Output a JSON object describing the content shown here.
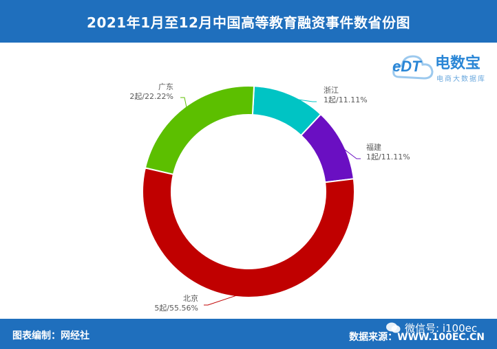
{
  "header": {
    "title": "2021年1月至12月中国高等教育融资事件数省份图"
  },
  "footer": {
    "left_text": "图表编制：网经社",
    "right_text": "数据来源：WWW.100EC.CN"
  },
  "watermark": {
    "wechat_text": "微信号: i100ec"
  },
  "logo": {
    "brand": "电数宝",
    "subtitle": "电商大数据库",
    "mark": "eDT"
  },
  "colors": {
    "header_bg": "#1f6fbd",
    "北京": "#c00000",
    "广东": "#5cbf00",
    "浙江": "#00c4c4",
    "福建": "#6a0fc2"
  },
  "chart_data": {
    "type": "pie",
    "donut": true,
    "title": "2021年1月至12月中国高等教育融资事件数省份图",
    "slices": [
      {
        "name": "浙江",
        "value": 1,
        "label": "1起/11.11%",
        "color": "#00c4c4"
      },
      {
        "name": "福建",
        "value": 1,
        "label": "1起/11.11%",
        "color": "#6a0fc2"
      },
      {
        "name": "北京",
        "value": 5,
        "label": "5起/55.56%",
        "color": "#c00000"
      },
      {
        "name": "广东",
        "value": 2,
        "label": "2起/22.22%",
        "color": "#5cbf00"
      }
    ]
  }
}
